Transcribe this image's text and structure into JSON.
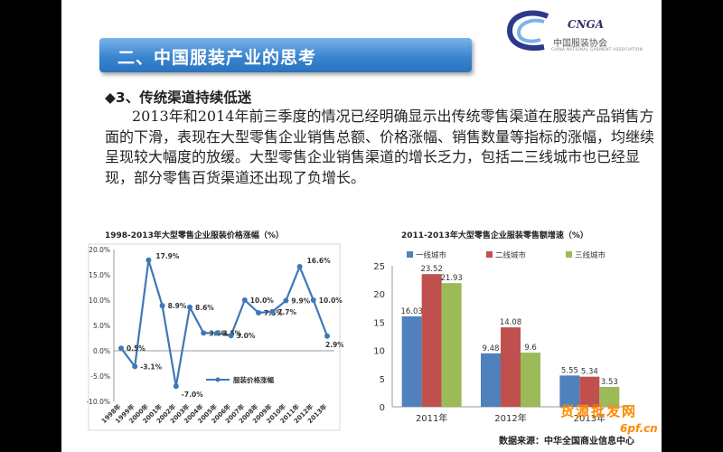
{
  "slide": {
    "title": "二、中国服装产业的思考",
    "heading": "◆3、传统渠道持续低迷",
    "paragraph": "2013年和2014年前三季度的情况已经明确显示出传统零售渠道在服装产品销售方面的下滑，表现在大型零售企业销售总额、价格涨幅、销售数量等指标的涨幅，均继续呈现较大幅度的放缓。大型零售企业销售渠道的增长乏力，包括二三线城市也已经显现，部分零售百货渠道还出现了负增长。",
    "source": "数据来源：中华全国商业信息中心"
  },
  "logo": {
    "mark": "CNGA",
    "name_cn": "中国服装协会",
    "name_en": "CHINA NATIONAL GARMENT ASSOCIATION"
  },
  "watermark": {
    "line1": "货源批发网",
    "line2": "6pf.cn"
  },
  "colors": {
    "title_bar": "#3a85cf",
    "line": "#3d78b8",
    "blue": "#4f81bd",
    "red": "#c0504d",
    "green": "#9bbb59"
  },
  "chart_data": [
    {
      "type": "line",
      "title": "1998-2013年大型零售企业服装价格涨幅（%）",
      "x": [
        "1998年",
        "1999年",
        "2000年",
        "2001年",
        "2002年",
        "2003年",
        "2004年",
        "2005年",
        "2006年",
        "2007年",
        "2008年",
        "2009年",
        "2010年",
        "2011年",
        "2012年",
        "2013年"
      ],
      "series": [
        {
          "name": "服装价格涨幅",
          "values": [
            0.5,
            -3.1,
            17.9,
            8.9,
            -7.0,
            8.6,
            3.5,
            3.5,
            3.0,
            10.0,
            7.5,
            7.7,
            9.9,
            16.6,
            10.0,
            2.9
          ]
        }
      ],
      "labels": [
        "0.5%",
        "-3.1%",
        "17.9%",
        "8.9%",
        "-7.0%",
        "8.6%",
        "3.5%",
        "3.5%",
        "3.0%",
        "10.0%",
        "7.5%",
        "7.7%",
        "9.9%",
        "16.6%",
        "10.0%",
        "2.9%"
      ],
      "yticks": [
        "20.0%",
        "15.0%",
        "10.0%",
        "5.0%",
        "0.0%",
        "-5.0%",
        "-10.0%"
      ],
      "ylim": [
        -10,
        20
      ],
      "grid": false,
      "legend": "bottom-center"
    },
    {
      "type": "bar",
      "title": "2011-2013年大型零售企业服装零售额增速（%）",
      "categories": [
        "2011年",
        "2012年",
        "2013年"
      ],
      "series": [
        {
          "name": "一线城市",
          "values": [
            16.03,
            9.48,
            5.55
          ],
          "labels": [
            "16.03",
            "9.48",
            "5.55"
          ]
        },
        {
          "name": "二线城市",
          "values": [
            23.52,
            14.08,
            5.34
          ],
          "labels": [
            "23.52",
            "14.08",
            "5.34"
          ]
        },
        {
          "name": "三线城市",
          "values": [
            21.93,
            9.6,
            3.53
          ],
          "labels": [
            "21.93",
            "9.6",
            "3.53"
          ]
        }
      ],
      "yticks": [
        "0",
        "5",
        "10",
        "15",
        "20",
        "25"
      ],
      "ylim": [
        0,
        25
      ],
      "grid": false,
      "legend": "top"
    }
  ]
}
